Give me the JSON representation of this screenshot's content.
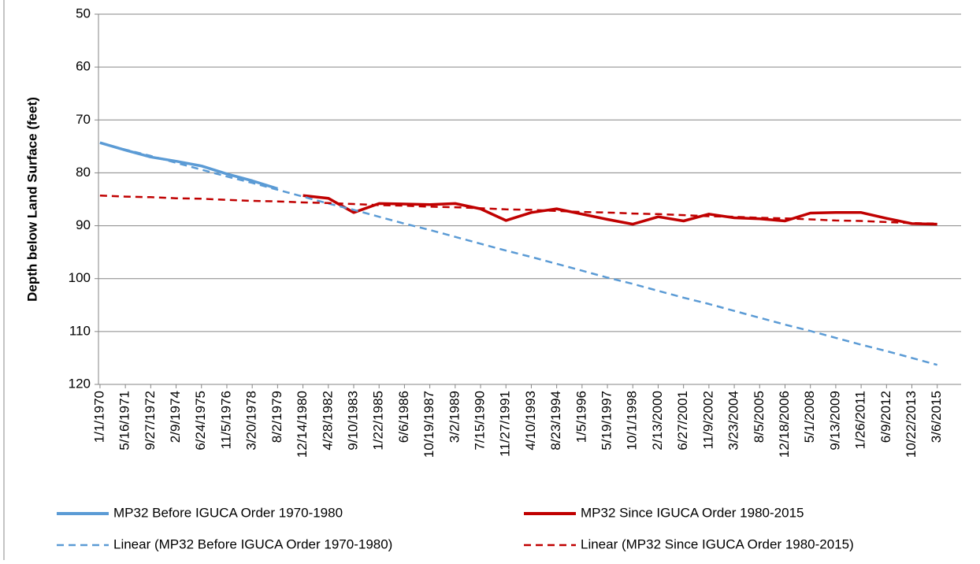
{
  "chart_data": {
    "type": "line",
    "y_label": "Depth below Land Surface (feet)",
    "categories": [
      "1/1/1970",
      "5/16/1971",
      "9/27/1972",
      "2/9/1974",
      "6/24/1975",
      "11/5/1976",
      "3/20/1978",
      "8/2/1979",
      "12/14/1980",
      "4/28/1982",
      "9/10/1983",
      "1/22/1985",
      "6/6/1986",
      "10/19/1987",
      "3/2/1989",
      "7/15/1990",
      "11/27/1991",
      "4/10/1993",
      "8/23/1994",
      "1/5/1996",
      "5/19/1997",
      "10/1/1998",
      "2/13/2000",
      "6/27/2001",
      "11/9/2002",
      "3/23/2004",
      "8/5/2005",
      "12/18/2006",
      "5/1/2008",
      "9/13/2009",
      "1/26/2011",
      "6/9/2012",
      "10/22/2013",
      "3/6/2015"
    ],
    "series": [
      {
        "name": "MP32 Before IGUCA Order 1970-1980",
        "color": "#5b9bd5",
        "dashed": false,
        "values": [
          74.3,
          75.7,
          77,
          77.8,
          78.7,
          80.2,
          81.5,
          83,
          null,
          null,
          null,
          null,
          null,
          null,
          null,
          null,
          null,
          null,
          null,
          null,
          null,
          null,
          null,
          null,
          null,
          null,
          null,
          null,
          null,
          null,
          null,
          null,
          null,
          null
        ]
      },
      {
        "name": "MP32 Since IGUCA Order 1980-2015",
        "color": "#c00000",
        "dashed": false,
        "values": [
          null,
          null,
          null,
          null,
          null,
          null,
          null,
          null,
          84.3,
          84.8,
          87.5,
          85.8,
          85.9,
          86,
          85.8,
          86.8,
          89,
          87.5,
          86.8,
          87.8,
          88.8,
          89.7,
          88.3,
          89.1,
          87.8,
          88.5,
          88.7,
          89.1,
          87.6,
          87.5,
          87.5,
          88.6,
          89.6,
          89.7
        ]
      },
      {
        "name": "Linear (MP32 Before IGUCA Order 1970-1980)",
        "color": "#5b9bd5",
        "dashed": true,
        "values": [
          74.3,
          75.6,
          76.8,
          78.1,
          79.4,
          80.7,
          81.9,
          83.2,
          84.5,
          85.8,
          87.0,
          88.3,
          89.6,
          90.8,
          92.1,
          93.4,
          94.7,
          95.9,
          97.2,
          98.5,
          99.8,
          101.0,
          102.3,
          103.6,
          104.8,
          106.1,
          107.4,
          108.7,
          109.9,
          111.2,
          112.5,
          113.7,
          115.0,
          116.3
        ]
      },
      {
        "name": "Linear (MP32 Since IGUCA Order 1980-2015)",
        "color": "#c00000",
        "dashed": true,
        "values": [
          84.3,
          84.5,
          84.6,
          84.8,
          84.9,
          85.1,
          85.3,
          85.4,
          85.6,
          85.7,
          85.9,
          86.1,
          86.2,
          86.4,
          86.5,
          86.7,
          86.9,
          87.0,
          87.2,
          87.4,
          87.5,
          87.7,
          87.8,
          88.0,
          88.2,
          88.3,
          88.5,
          88.6,
          88.8,
          89.0,
          89.1,
          89.3,
          89.5,
          89.6
        ]
      }
    ],
    "ylim": [
      50,
      120
    ],
    "y_reversed": true,
    "yticks": [
      50,
      60,
      70,
      80,
      90,
      100,
      110,
      120
    ],
    "grid": true,
    "legend": "bottom"
  }
}
